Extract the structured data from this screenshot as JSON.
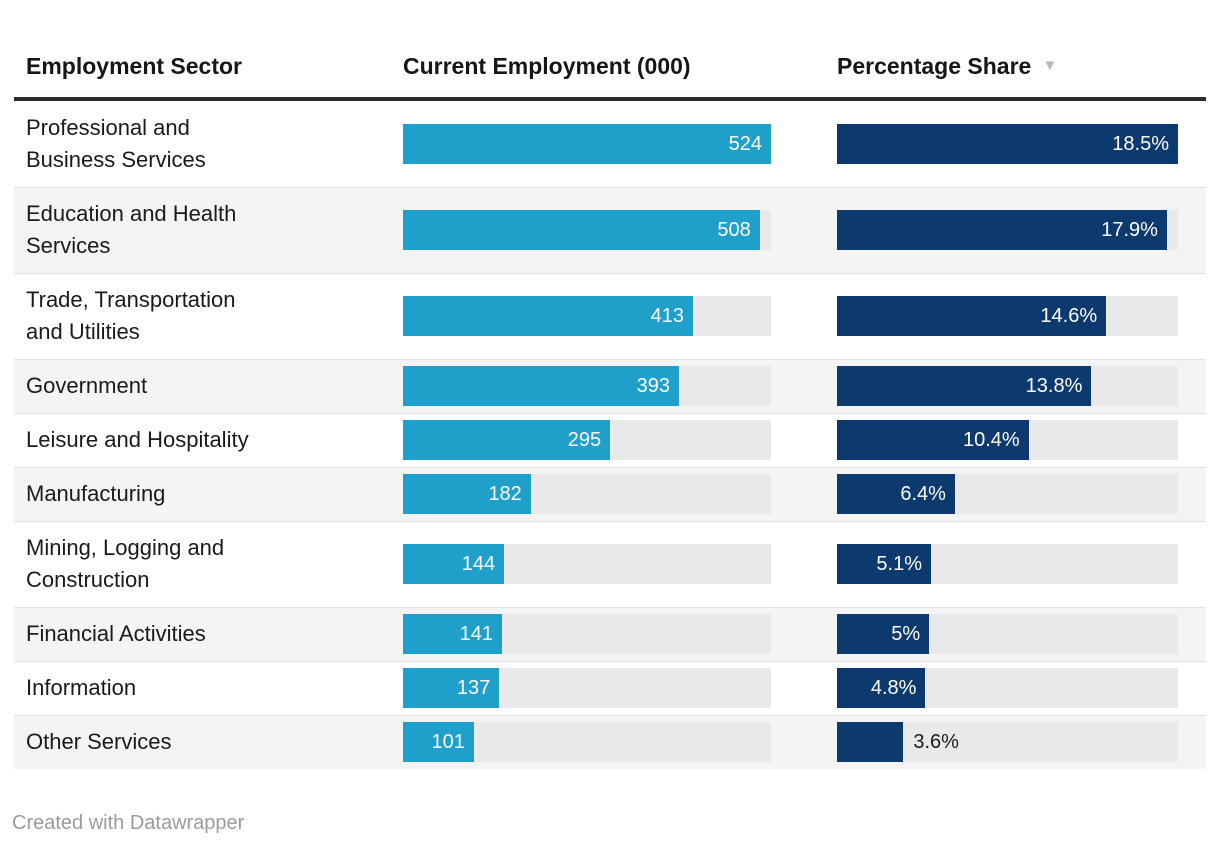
{
  "header": {
    "columns": [
      "Employment Sector",
      "Current Employment (000)",
      "Percentage Share"
    ],
    "sort_icon": "triangle-down",
    "sorted_column": "Percentage Share",
    "sort_direction": "descending"
  },
  "axes": {
    "employment_max": 524,
    "share_max": 18.5
  },
  "colors": {
    "employment_bar": "#1ea0cb",
    "share_bar": "#0d3a6e",
    "bar_track": "#e9e9e9",
    "row_stripe": "#f4f4f4",
    "header_rule": "#2b2b2b"
  },
  "rows": [
    {
      "sector": "Professional and Business Services",
      "employment_value": 524,
      "employment_label": "524",
      "share_value": 18.5,
      "share_label": "18.5%",
      "share_label_inside": true
    },
    {
      "sector": "Education and Health Services",
      "employment_value": 508,
      "employment_label": "508",
      "share_value": 17.9,
      "share_label": "17.9%",
      "share_label_inside": true
    },
    {
      "sector": "Trade, Transportation and Utilities",
      "employment_value": 413,
      "employment_label": "413",
      "share_value": 14.6,
      "share_label": "14.6%",
      "share_label_inside": true
    },
    {
      "sector": "Government",
      "employment_value": 393,
      "employment_label": "393",
      "share_value": 13.8,
      "share_label": "13.8%",
      "share_label_inside": true
    },
    {
      "sector": "Leisure and Hospitality",
      "employment_value": 295,
      "employment_label": "295",
      "share_value": 10.4,
      "share_label": "10.4%",
      "share_label_inside": true
    },
    {
      "sector": "Manufacturing",
      "employment_value": 182,
      "employment_label": "182",
      "share_value": 6.4,
      "share_label": "6.4%",
      "share_label_inside": true
    },
    {
      "sector": "Mining, Logging and Construction",
      "employment_value": 144,
      "employment_label": "144",
      "share_value": 5.1,
      "share_label": "5.1%",
      "share_label_inside": true
    },
    {
      "sector": "Financial Activities",
      "employment_value": 141,
      "employment_label": "141",
      "share_value": 5,
      "share_label": "5%",
      "share_label_inside": true
    },
    {
      "sector": "Information",
      "employment_value": 137,
      "employment_label": "137",
      "share_value": 4.8,
      "share_label": "4.8%",
      "share_label_inside": true
    },
    {
      "sector": "Other Services",
      "employment_value": 101,
      "employment_label": "101",
      "share_value": 3.6,
      "share_label": "3.6%",
      "share_label_inside": false
    }
  ],
  "footer": {
    "credit": "Created with Datawrapper"
  },
  "chart_data": {
    "type": "table",
    "title": "",
    "columns": [
      "Employment Sector",
      "Current Employment (000)",
      "Percentage Share"
    ],
    "categories": [
      "Professional and Business Services",
      "Education and Health Services",
      "Trade, Transportation and Utilities",
      "Government",
      "Leisure and Hospitality",
      "Manufacturing",
      "Mining, Logging and Construction",
      "Financial Activities",
      "Information",
      "Other Services"
    ],
    "series": [
      {
        "name": "Current Employment (000)",
        "values": [
          524,
          508,
          413,
          393,
          295,
          182,
          144,
          141,
          137,
          101
        ],
        "bar_scale_max": 524
      },
      {
        "name": "Percentage Share",
        "unit": "%",
        "values": [
          18.5,
          17.9,
          14.6,
          13.8,
          10.4,
          6.4,
          5.1,
          5,
          4.8,
          3.6
        ],
        "bar_scale_max": 18.5
      }
    ],
    "sort": {
      "column": "Percentage Share",
      "direction": "descending"
    },
    "legend_position": "none",
    "grid": false
  }
}
